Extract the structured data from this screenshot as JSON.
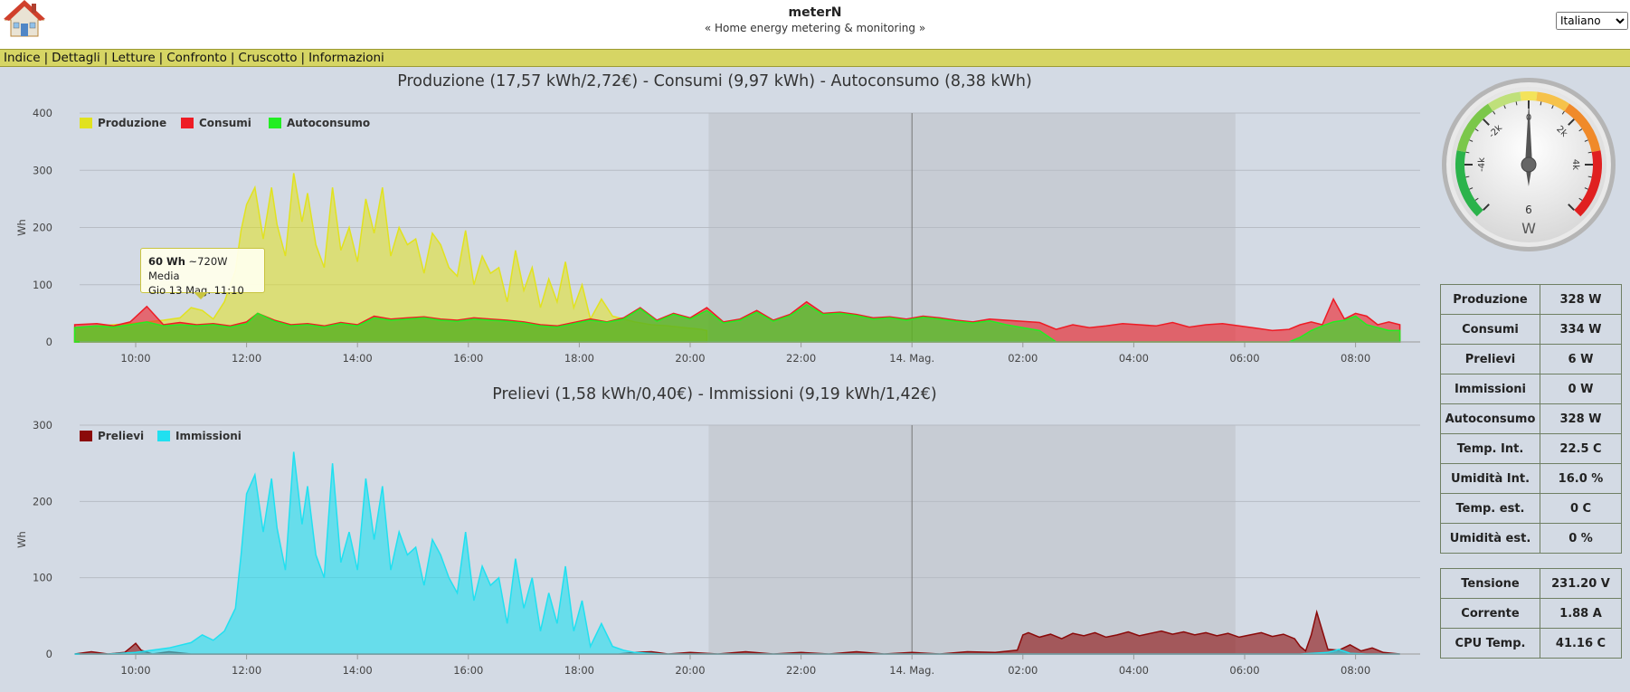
{
  "header": {
    "title": "meterN",
    "subtitle": "« Home energy metering & monitoring »",
    "language": {
      "selected": "Italiano",
      "options": [
        "Italiano"
      ]
    }
  },
  "menu": [
    {
      "label": "Indice"
    },
    {
      "label": "Dettagli"
    },
    {
      "label": "Letture"
    },
    {
      "label": "Confronto"
    },
    {
      "label": "Cruscotto"
    },
    {
      "label": "Informazioni"
    }
  ],
  "colors": {
    "produzione": "#e1e21f",
    "consumi": "#ee1c25",
    "autoconsumo": "#22ee22",
    "prelievi": "#8b0a0a",
    "immissioni": "#20e0f0",
    "night_band": "#c7ccd4"
  },
  "tooltip": {
    "value": "60 Wh",
    "detail": "~720W Media",
    "time": "Gio 13 Mag. 11:10"
  },
  "chart_data": [
    {
      "type": "area",
      "title": "Produzione (17,57 kWh/2,72€) - Consumi (9,97 kWh) - Autoconsumo (8,38 kWh)",
      "ylabel": "Wh",
      "ylim": [
        0,
        400
      ],
      "yticks": [
        "0",
        "100",
        "200",
        "300",
        "400"
      ],
      "xlim": [
        "13 Mag 08:55",
        "14 Mag 08:50"
      ],
      "xticks": [
        "10:00",
        "12:00",
        "14:00",
        "16:00",
        "18:00",
        "20:00",
        "22:00",
        "14. Mag.",
        "02:00",
        "04:00",
        "06:00",
        "08:00"
      ],
      "night_band": [
        "20:20",
        "05:50"
      ],
      "legend": "top-left",
      "series": [
        {
          "name": "Produzione",
          "x_hours": [
            8.9,
            9.3,
            9.6,
            9.9,
            10.2,
            10.5,
            10.8,
            11,
            11.2,
            11.4,
            11.6,
            11.8,
            11.9,
            12,
            12.15,
            12.3,
            12.45,
            12.55,
            12.7,
            12.85,
            13,
            13.1,
            13.25,
            13.4,
            13.55,
            13.7,
            13.85,
            14,
            14.15,
            14.3,
            14.45,
            14.6,
            14.75,
            14.9,
            15.05,
            15.2,
            15.35,
            15.5,
            15.65,
            15.8,
            15.95,
            16.1,
            16.25,
            16.4,
            16.55,
            16.7,
            16.85,
            17,
            17.15,
            17.3,
            17.45,
            17.6,
            17.75,
            17.9,
            18.05,
            18.2,
            18.4,
            18.6,
            18.8,
            19,
            19.3,
            19.6,
            19.9,
            20.2,
            20.3
          ],
          "values": [
            25,
            28,
            30,
            32,
            35,
            38,
            42,
            60,
            55,
            40,
            70,
            125,
            195,
            240,
            270,
            180,
            270,
            205,
            150,
            295,
            210,
            260,
            170,
            130,
            270,
            160,
            200,
            140,
            250,
            190,
            270,
            150,
            200,
            170,
            180,
            120,
            190,
            170,
            130,
            115,
            195,
            100,
            150,
            120,
            130,
            70,
            160,
            90,
            130,
            60,
            110,
            70,
            140,
            60,
            100,
            40,
            75,
            45,
            40,
            35,
            30,
            28,
            25,
            22,
            20
          ]
        },
        {
          "name": "Consumi",
          "x_hours": [
            8.9,
            9.3,
            9.6,
            9.9,
            10.2,
            10.5,
            10.8,
            11.1,
            11.4,
            11.7,
            12,
            12.2,
            12.5,
            12.8,
            13.1,
            13.4,
            13.7,
            14,
            14.3,
            14.6,
            14.9,
            15.2,
            15.5,
            15.8,
            16.1,
            16.4,
            16.7,
            17,
            17.3,
            17.6,
            17.9,
            18.2,
            18.5,
            18.8,
            19.1,
            19.4,
            19.7,
            20,
            20.3,
            20.6,
            20.9,
            21.2,
            21.5,
            21.8,
            22.1,
            22.4,
            22.7,
            23,
            23.3,
            23.6,
            23.9,
            24.2,
            24.5,
            24.8,
            25.1,
            25.4,
            25.7,
            26,
            26.3,
            26.6,
            26.9,
            27.2,
            27.5,
            27.8,
            28.1,
            28.4,
            28.7,
            29,
            29.3,
            29.6,
            29.9,
            30.2,
            30.5,
            30.8,
            31,
            31.2,
            31.4,
            31.6,
            31.8,
            32,
            32.2,
            32.4,
            32.6,
            32.8
          ],
          "values": [
            30,
            32,
            28,
            35,
            62,
            30,
            34,
            30,
            32,
            28,
            35,
            50,
            38,
            30,
            32,
            28,
            34,
            30,
            45,
            40,
            42,
            44,
            40,
            38,
            42,
            40,
            38,
            35,
            30,
            28,
            34,
            40,
            35,
            42,
            60,
            38,
            50,
            42,
            60,
            35,
            40,
            55,
            38,
            48,
            70,
            50,
            52,
            48,
            42,
            44,
            40,
            45,
            42,
            38,
            35,
            40,
            38,
            36,
            34,
            22,
            30,
            25,
            28,
            32,
            30,
            28,
            34,
            26,
            30,
            32,
            28,
            24,
            20,
            22,
            30,
            35,
            30,
            75,
            40,
            50,
            45,
            30,
            35,
            30
          ]
        },
        {
          "name": "Autoconsumo",
          "x_hours": [
            8.9,
            9.3,
            9.6,
            9.9,
            10.2,
            10.5,
            10.8,
            11.1,
            11.4,
            11.7,
            12,
            12.2,
            12.5,
            12.8,
            13.1,
            13.4,
            13.7,
            14,
            14.3,
            14.6,
            14.9,
            15.2,
            15.5,
            15.8,
            16.1,
            16.4,
            16.7,
            17,
            17.3,
            17.6,
            17.9,
            18.2,
            18.5,
            18.8,
            19.1,
            19.4,
            19.7,
            20,
            20.3,
            20.6,
            20.9,
            21.2,
            21.5,
            21.8,
            22.1,
            22.4,
            22.7,
            23,
            23.3,
            23.6,
            23.9,
            24.2,
            24.5,
            24.8,
            25.1,
            25.4,
            25.7,
            26,
            26.3,
            26.6,
            26.9,
            27.2,
            27.5,
            27.8,
            28.1,
            28.4,
            28.7,
            29,
            29.3,
            29.6,
            29.9,
            30.2,
            30.5,
            30.8,
            31,
            31.2,
            31.4,
            31.6,
            31.8,
            32,
            32.2,
            32.4,
            32.6,
            32.8
          ],
          "values": [
            25,
            28,
            26,
            30,
            35,
            28,
            30,
            28,
            30,
            26,
            32,
            50,
            36,
            28,
            30,
            26,
            32,
            28,
            42,
            38,
            40,
            42,
            38,
            36,
            40,
            38,
            36,
            33,
            28,
            26,
            32,
            38,
            34,
            40,
            58,
            36,
            48,
            40,
            55,
            33,
            38,
            52,
            36,
            46,
            65,
            48,
            50,
            46,
            40,
            42,
            38,
            43,
            40,
            36,
            33,
            37,
            30,
            25,
            20,
            0,
            0,
            0,
            0,
            0,
            0,
            0,
            0,
            0,
            0,
            0,
            0,
            0,
            0,
            0,
            8,
            20,
            28,
            35,
            38,
            45,
            30,
            25,
            20,
            20
          ]
        }
      ]
    },
    {
      "type": "area",
      "title": "Prelievi (1,58 kWh/0,40€) - Immissioni (9,19 kWh/1,42€)",
      "ylabel": "Wh",
      "ylim": [
        0,
        300
      ],
      "yticks": [
        "0",
        "100",
        "200",
        "300"
      ],
      "xlim": [
        "13 Mag 08:55",
        "14 Mag 08:50"
      ],
      "xticks": [
        "10:00",
        "12:00",
        "14:00",
        "16:00",
        "18:00",
        "20:00",
        "22:00",
        "14. Mag.",
        "02:00",
        "04:00",
        "06:00",
        "08:00"
      ],
      "night_band": [
        "20:20",
        "05:50"
      ],
      "legend": "top-left",
      "series": [
        {
          "name": "Prelievi",
          "x_hours": [
            8.9,
            9.2,
            9.5,
            9.8,
            9.9,
            10,
            10.1,
            10.3,
            10.6,
            11,
            11.5,
            12,
            13,
            14,
            15,
            16,
            17,
            18,
            18.7,
            19,
            19.3,
            19.6,
            20,
            20.5,
            21,
            21.5,
            22,
            22.5,
            23,
            23.5,
            24,
            24.5,
            25,
            25.5,
            25.9,
            26,
            26.1,
            26.3,
            26.5,
            26.7,
            26.9,
            27.1,
            27.3,
            27.5,
            27.7,
            27.9,
            28.1,
            28.3,
            28.5,
            28.7,
            28.9,
            29.1,
            29.3,
            29.5,
            29.7,
            29.9,
            30.1,
            30.3,
            30.5,
            30.7,
            30.9,
            31,
            31.1,
            31.2,
            31.3,
            31.5,
            31.7,
            31.9,
            32.1,
            32.3,
            32.5,
            32.8
          ],
          "values": [
            0,
            3,
            0,
            2,
            8,
            14,
            5,
            0,
            3,
            0,
            0,
            0,
            0,
            0,
            0,
            0,
            0,
            0,
            0,
            2,
            3,
            0,
            2,
            0,
            3,
            0,
            2,
            0,
            3,
            0,
            2,
            0,
            3,
            2,
            5,
            25,
            28,
            22,
            26,
            20,
            27,
            24,
            28,
            22,
            25,
            29,
            24,
            27,
            30,
            26,
            29,
            25,
            28,
            24,
            27,
            22,
            25,
            28,
            23,
            26,
            20,
            10,
            4,
            25,
            55,
            6,
            5,
            12,
            4,
            8,
            2,
            0
          ]
        },
        {
          "name": "Immissioni",
          "x_hours": [
            8.9,
            9.5,
            10,
            10.3,
            10.6,
            11,
            11.2,
            11.4,
            11.6,
            11.8,
            11.9,
            12,
            12.15,
            12.3,
            12.45,
            12.55,
            12.7,
            12.85,
            13,
            13.1,
            13.25,
            13.4,
            13.55,
            13.7,
            13.85,
            14,
            14.15,
            14.3,
            14.45,
            14.6,
            14.75,
            14.9,
            15.05,
            15.2,
            15.35,
            15.5,
            15.65,
            15.8,
            15.95,
            16.1,
            16.25,
            16.4,
            16.55,
            16.7,
            16.85,
            17,
            17.15,
            17.3,
            17.45,
            17.6,
            17.75,
            17.9,
            18.05,
            18.2,
            18.4,
            18.6,
            18.8,
            19,
            19.5,
            20,
            20.5,
            21,
            22,
            23,
            24,
            25,
            26,
            27,
            28,
            29,
            30,
            31,
            31.5,
            31.7,
            31.9,
            32.2,
            32.8
          ],
          "values": [
            0,
            0,
            2,
            5,
            8,
            15,
            25,
            18,
            30,
            60,
            130,
            210,
            235,
            160,
            230,
            165,
            110,
            265,
            170,
            220,
            130,
            100,
            250,
            120,
            160,
            110,
            230,
            150,
            220,
            110,
            160,
            130,
            140,
            90,
            150,
            130,
            100,
            80,
            160,
            70,
            115,
            90,
            100,
            40,
            125,
            60,
            100,
            30,
            80,
            40,
            115,
            30,
            70,
            10,
            40,
            10,
            5,
            2,
            0,
            0,
            0,
            0,
            0,
            0,
            0,
            0,
            0,
            0,
            0,
            0,
            0,
            0,
            2,
            6,
            1,
            0,
            0
          ]
        }
      ]
    }
  ],
  "gauge": {
    "unit": "W",
    "reading": "6",
    "value": 6,
    "min": -6000,
    "max": 6000,
    "tick_labels": [
      "-4k",
      "-2k",
      "0",
      "2k",
      "4k"
    ]
  },
  "live_table_1": [
    {
      "label": "Produzione",
      "value": "328 W"
    },
    {
      "label": "Consumi",
      "value": "334 W"
    },
    {
      "label": "Prelievi",
      "value": "6 W"
    },
    {
      "label": "Immissioni",
      "value": "0 W"
    },
    {
      "label": "Autoconsumo",
      "value": "328 W"
    },
    {
      "label": "Temp. Int.",
      "value": "22.5 C"
    },
    {
      "label": "Umidità Int.",
      "value": "16.0 %"
    },
    {
      "label": "Temp. est.",
      "value": "0 C"
    },
    {
      "label": "Umidità est.",
      "value": "0 %"
    }
  ],
  "live_table_2": [
    {
      "label": "Tensione",
      "value": "231.20 V"
    },
    {
      "label": "Corrente",
      "value": "1.88 A"
    },
    {
      "label": "CPU Temp.",
      "value": "41.16 C"
    }
  ]
}
